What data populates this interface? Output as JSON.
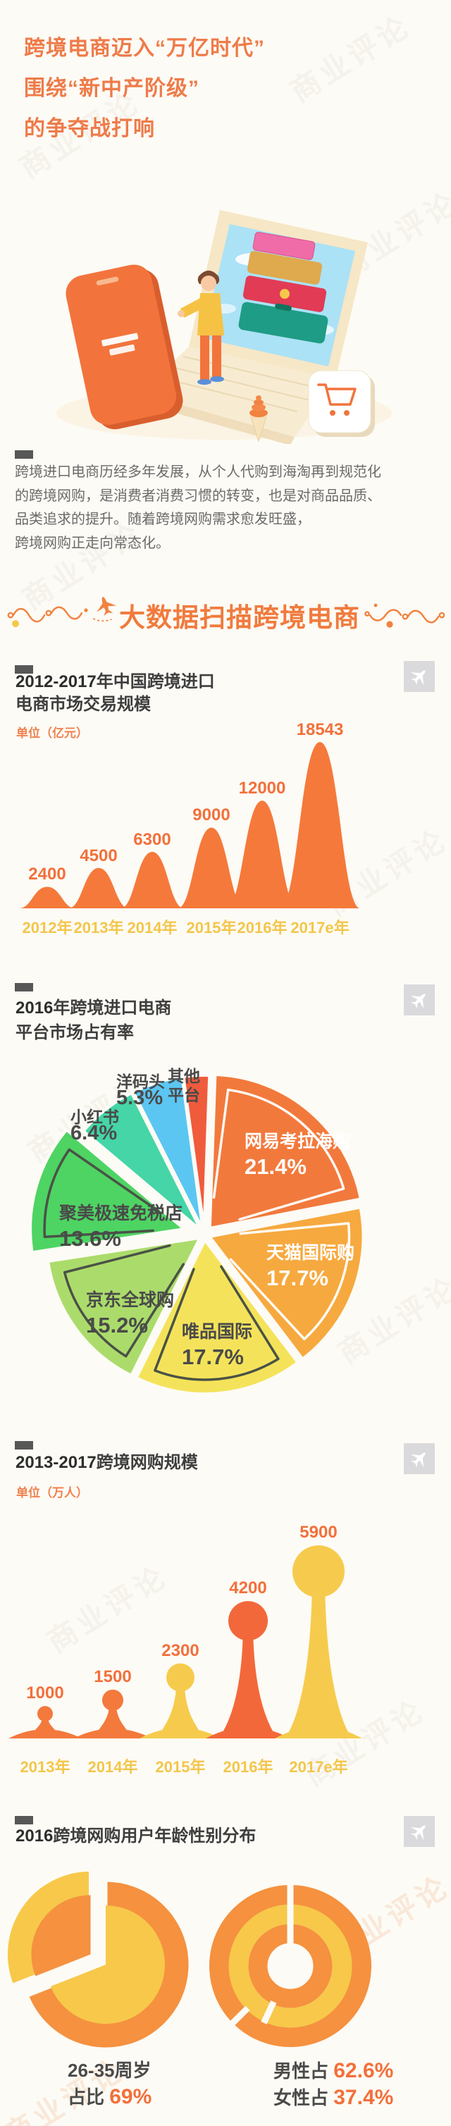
{
  "page": {
    "watermark_text": "商业评论"
  },
  "header": {
    "title_lines": [
      "跨境电商迈入“万亿时代”",
      "围绕“新中产阶级”",
      "的争夺战打响"
    ]
  },
  "intro": {
    "lines": [
      "跨境进口电商历经多年发展，从个人代购到海淘再到规范化",
      "的跨境网购，是消费者消费习惯的转变，也是对商品品质、",
      "品类追求的提升。随着跨境网购需求愈发旺盛，",
      "跨境网购正走向常态化。"
    ]
  },
  "banner": {
    "text": "大数据扫描跨境电商"
  },
  "colors": {
    "accent_orange": "#F2703B",
    "axis_yellow": "#F3C64B",
    "title_orange": "#EE7B49",
    "donut_orange": "#F5913F",
    "donut_yellow": "#F7C84A"
  },
  "chart_data": [
    {
      "id": "trade-scale",
      "type": "area",
      "title_strong": "2012-2017",
      "title_rest": "年中国跨境进口",
      "title_line2": "电商市场交易规模",
      "unit": "单位（亿元）",
      "categories": [
        "2012年",
        "2013年",
        "2014年",
        "2015年",
        "2016年",
        "2017e年"
      ],
      "values": [
        2400,
        4500,
        6300,
        9000,
        12000,
        18543
      ],
      "ylim": [
        0,
        18543
      ],
      "bar_color": "#F5793B",
      "value_color": "#F2703B",
      "axis_color": "#F3C64B"
    },
    {
      "id": "market-share",
      "type": "pie",
      "title_strong": "2016",
      "title_rest": "年跨境进口电商",
      "title_line2": "平台市场占有率",
      "slices": [
        {
          "label": "网易考拉海购",
          "value": 21.4,
          "display": "21.4%",
          "color": "#F2793C",
          "label_color": "#FFFFFF"
        },
        {
          "label": "天猫国际购",
          "value": 17.7,
          "display": "17.7%",
          "color": "#F6A93F",
          "label_color": "#FFFFFF"
        },
        {
          "label": "唯品国际",
          "value": 17.7,
          "display": "17.7%",
          "color": "#F4E35A",
          "label_color": "#4A4A4A"
        },
        {
          "label": "京东全球购",
          "value": 15.2,
          "display": "15.2%",
          "color": "#ABDC6B",
          "label_color": "#4A4A4A"
        },
        {
          "label": "聚美极速免税店",
          "value": 13.6,
          "display": "13.6%",
          "color": "#4ED463",
          "label_color": "#4A4A4A"
        },
        {
          "label": "小红书",
          "value": 6.4,
          "display": "6.4%",
          "color": "#45D5A7",
          "label_color": "#4A4A4A"
        },
        {
          "label": "洋码头",
          "value": 5.3,
          "display": "5.3%",
          "color": "#5BC6F2",
          "label_color": "#4A4A4A"
        },
        {
          "label": "其他平台",
          "value": 2.7,
          "display": "",
          "color": "#F05B3C",
          "label_color": "#4A4A4A"
        }
      ]
    },
    {
      "id": "shopper-scale",
      "type": "bar",
      "title_strong": "2013-2017",
      "title_rest": "跨境网购规模",
      "unit": "单位（万人）",
      "categories": [
        "2013年",
        "2014年",
        "2015年",
        "2016年",
        "2017e年"
      ],
      "values": [
        1000,
        1500,
        2300,
        4200,
        5900
      ],
      "colors": [
        "#F4793C",
        "#F4793C",
        "#F6CB4D",
        "#F3683A",
        "#F6CB4D"
      ],
      "value_color": "#F2703B",
      "axis_color": "#F3C64B"
    },
    {
      "id": "age-gender",
      "type": "pie",
      "title_strong": "2016",
      "title_rest": "跨境网购用户年龄性别分布",
      "age": {
        "label": "26-35周岁",
        "caption_prefix": "占比",
        "value": 69,
        "display": "69%"
      },
      "gender": [
        {
          "prefix": "男性占",
          "value": 62.6,
          "display": "62.6%"
        },
        {
          "prefix": "女性占",
          "value": 37.4,
          "display": "37.4%"
        }
      ]
    }
  ]
}
